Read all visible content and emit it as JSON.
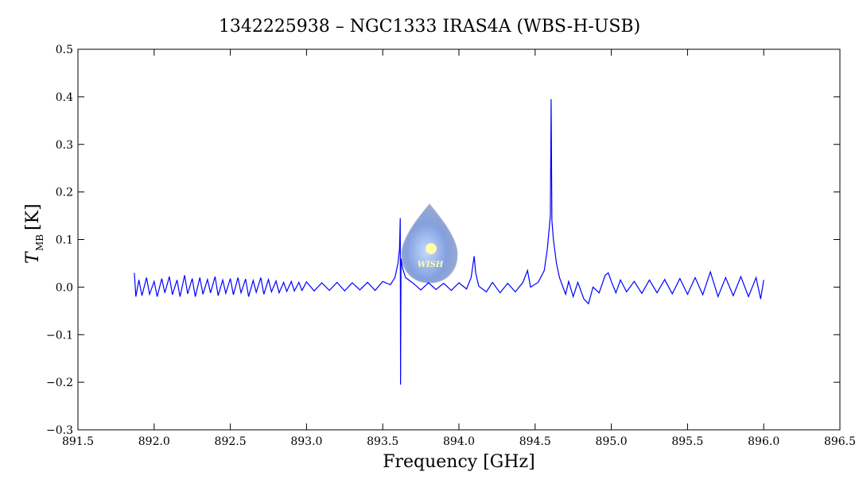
{
  "chart_data": {
    "type": "line",
    "title": "1342225938 – NGC1333 IRAS4A (WBS-H-USB)",
    "x_label": "Frequency [GHz]",
    "y_label": "T",
    "y_label_subscript": "MB",
    "y_label_unit": "[K]",
    "logo_text": "WISH",
    "xlim": [
      891.5,
      896.5
    ],
    "xticks": [
      891.5,
      {
        "value": 892,
        "label": "892.0"
      },
      892.5,
      {
        "value": 893,
        "label": "893.0"
      },
      893.5,
      {
        "value": 894,
        "label": "894.0"
      },
      894.5,
      {
        "value": 895,
        "label": "895.0"
      },
      895.5,
      {
        "value": 896,
        "label": "896.0"
      },
      896.5
    ],
    "ylim": [
      -0.3,
      0.5
    ],
    "yticks": [
      {
        "value": -0.3,
        "label": "−0.3"
      },
      {
        "value": -0.2,
        "label": "−0.2"
      },
      {
        "value": -0.1,
        "label": "−0.1"
      },
      {
        "value": 0,
        "label": "0.0"
      },
      0.1,
      0.2,
      0.3,
      0.4,
      0.5
    ],
    "series": [
      {
        "color": "#0000ff",
        "x": [
          891.87,
          891.88,
          891.9,
          891.92,
          891.95,
          891.97,
          892.0,
          892.02,
          892.05,
          892.07,
          892.1,
          892.12,
          892.15,
          892.17,
          892.2,
          892.22,
          892.25,
          892.27,
          892.3,
          892.32,
          892.35,
          892.37,
          892.4,
          892.42,
          892.45,
          892.47,
          892.5,
          892.52,
          892.55,
          892.57,
          892.6,
          892.62,
          892.65,
          892.67,
          892.7,
          892.72,
          892.75,
          892.77,
          892.8,
          892.82,
          892.85,
          892.87,
          892.9,
          892.92,
          892.95,
          892.97,
          893.0,
          893.05,
          893.1,
          893.15,
          893.2,
          893.25,
          893.3,
          893.35,
          893.4,
          893.45,
          893.5,
          893.55,
          893.58,
          893.6,
          893.61,
          893.615,
          893.617,
          893.62,
          893.63,
          893.65,
          893.7,
          893.75,
          893.8,
          893.85,
          893.9,
          893.95,
          894.0,
          894.05,
          894.08,
          894.1,
          894.11,
          894.13,
          894.18,
          894.22,
          894.27,
          894.32,
          894.37,
          894.42,
          894.45,
          894.47,
          894.52,
          894.56,
          894.58,
          894.6,
          894.605,
          894.61,
          894.62,
          894.64,
          894.66,
          894.7,
          894.72,
          894.75,
          894.78,
          894.82,
          894.85,
          894.88,
          894.92,
          894.96,
          894.98,
          895.0,
          895.03,
          895.06,
          895.1,
          895.15,
          895.2,
          895.25,
          895.3,
          895.35,
          895.4,
          895.45,
          895.5,
          895.55,
          895.6,
          895.65,
          895.7,
          895.75,
          895.8,
          895.85,
          895.9,
          895.95,
          895.98,
          896.0
        ],
        "values": [
          0.03,
          -0.02,
          0.015,
          -0.018,
          0.02,
          -0.015,
          0.012,
          -0.02,
          0.018,
          -0.012,
          0.022,
          -0.016,
          0.015,
          -0.02,
          0.025,
          -0.014,
          0.018,
          -0.02,
          0.02,
          -0.015,
          0.016,
          -0.012,
          0.022,
          -0.018,
          0.015,
          -0.013,
          0.018,
          -0.016,
          0.02,
          -0.012,
          0.017,
          -0.02,
          0.014,
          -0.011,
          0.02,
          -0.015,
          0.016,
          -0.01,
          0.013,
          -0.012,
          0.01,
          -0.009,
          0.012,
          -0.008,
          0.01,
          -0.007,
          0.011,
          -0.008,
          0.009,
          -0.007,
          0.01,
          -0.008,
          0.009,
          -0.006,
          0.01,
          -0.007,
          0.012,
          0.005,
          0.02,
          0.05,
          0.08,
          0.145,
          -0.205,
          0.06,
          0.04,
          0.02,
          0.008,
          -0.006,
          0.009,
          -0.005,
          0.008,
          -0.007,
          0.009,
          -0.004,
          0.02,
          0.065,
          0.03,
          0.002,
          -0.01,
          0.01,
          -0.012,
          0.008,
          -0.01,
          0.01,
          0.035,
          0,
          0.01,
          0.035,
          0.08,
          0.15,
          0.395,
          0.14,
          0.1,
          0.05,
          0.02,
          -0.015,
          0.012,
          -0.02,
          0.01,
          -0.025,
          -0.035,
          0,
          -0.012,
          0.025,
          0.03,
          0.012,
          -0.012,
          0.015,
          -0.01,
          0.012,
          -0.013,
          0.015,
          -0.012,
          0.016,
          -0.014,
          0.018,
          -0.015,
          0.02,
          -0.016,
          0.032,
          -0.02,
          0.02,
          -0.018,
          0.022,
          -0.02,
          0.02,
          -0.025,
          0.015
        ]
      }
    ]
  }
}
